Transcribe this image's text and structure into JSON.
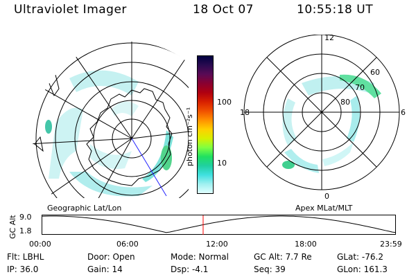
{
  "header": {
    "instrument": "Ultraviolet Imager",
    "date": "18 Oct 07",
    "time": "10:55:18 UT"
  },
  "colorbar": {
    "unit_label": "photon cm⁻²s⁻¹",
    "ticks": [
      "100",
      "10"
    ],
    "colors": [
      "#000040",
      "#2a0a50",
      "#5a0a55",
      "#8a0030",
      "#b00010",
      "#d82000",
      "#f05000",
      "#ff9000",
      "#ffd000",
      "#d8f000",
      "#80ff40",
      "#20e060",
      "#20d0a0",
      "#40e0e0",
      "#a0f0f0",
      "#e0ffff"
    ]
  },
  "geographic_map": {
    "label": "Geographic Lat/Lon"
  },
  "polar_map": {
    "label": "Apex MLat/MLT",
    "mlt_labels": {
      "top": "12",
      "left": "18",
      "right": "6",
      "bottom": "0"
    },
    "lat_labels": [
      "60",
      "70",
      "80"
    ]
  },
  "altitude_plot": {
    "ylabel": "GC Alt",
    "y_ticks": [
      "9.0",
      "1.8"
    ],
    "x_ticks": [
      "00:00",
      "06:00",
      "12:00",
      "18:00",
      "23:59"
    ],
    "cursor_color": "#ff0000"
  },
  "status": {
    "filter": "Flt: LBHL",
    "ip": "IP: 36.0",
    "door": "Door: Open",
    "gain": "Gain: 14",
    "mode": "Mode: Normal",
    "dsp": "Dsp:   -4.1",
    "gc_alt": "GC Alt: 7.7 Re",
    "seq": "Seq: 39",
    "glat": "GLat: -76.2",
    "glon": "GLon: 161.3"
  }
}
